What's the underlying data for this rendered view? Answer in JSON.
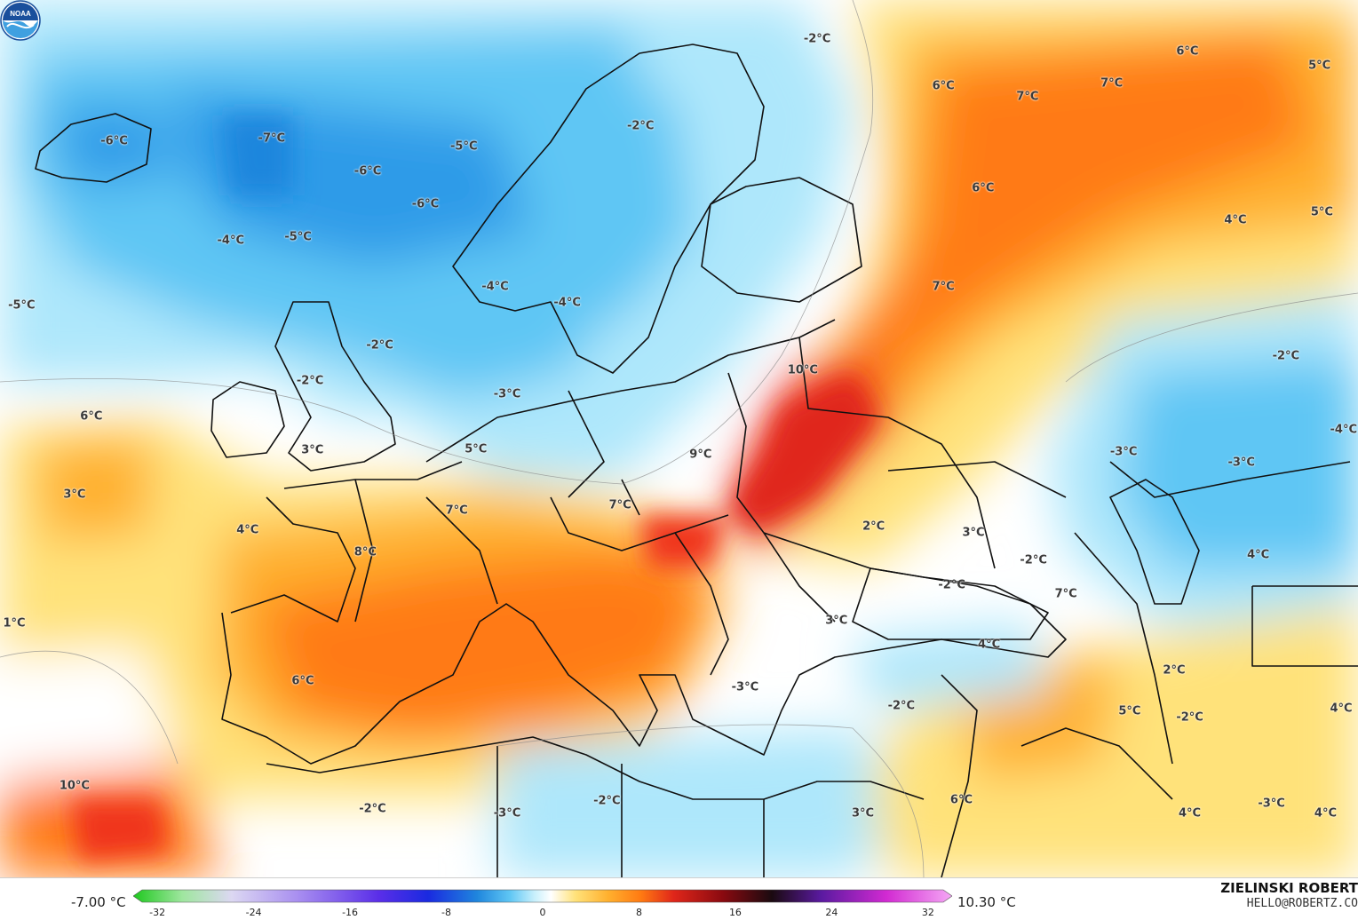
{
  "colors": {
    "cold_deep": "#2f9be8",
    "cold_mid": "#5fc6f4",
    "cold_light": "#aee7fb",
    "neutral": "#ffffff",
    "warm_light": "#ffe27a",
    "warm_mid": "#ffb02e",
    "warm_deep": "#ff7a12",
    "hot": "#f0361c",
    "border": "#111111"
  },
  "labels": [
    {
      "text": "-6°C",
      "lon": -18.5,
      "lat": 66.2
    },
    {
      "text": "-7°C",
      "lon": -5.4,
      "lat": 66.4
    },
    {
      "text": "-6°C",
      "lon": 2.6,
      "lat": 63.9
    },
    {
      "text": "-5°C",
      "lon": 10.6,
      "lat": 65.8
    },
    {
      "text": "-6°C",
      "lon": 7.4,
      "lat": 61.4
    },
    {
      "text": "-4°C",
      "lon": -8.8,
      "lat": 58.6
    },
    {
      "text": "-5°C",
      "lon": -3.2,
      "lat": 58.9
    },
    {
      "text": "-5°C",
      "lon": -26.2,
      "lat": 53.7
    },
    {
      "text": "-2°C",
      "lon": 25.3,
      "lat": 67.4
    },
    {
      "text": "-2°C",
      "lon": 40.0,
      "lat": 74.0
    },
    {
      "text": "-4°C",
      "lon": 13.2,
      "lat": 55.1
    },
    {
      "text": "-4°C",
      "lon": 19.2,
      "lat": 53.9
    },
    {
      "text": "-2°C",
      "lon": 3.6,
      "lat": 50.6
    },
    {
      "text": "-2°C",
      "lon": -2.2,
      "lat": 47.9
    },
    {
      "text": "-3°C",
      "lon": 14.2,
      "lat": 46.9
    },
    {
      "text": "6°C",
      "lon": 50.5,
      "lat": 70.4
    },
    {
      "text": "7°C",
      "lon": 57.5,
      "lat": 69.6
    },
    {
      "text": "7°C",
      "lon": 64.5,
      "lat": 70.6
    },
    {
      "text": "6°C",
      "lon": 70.8,
      "lat": 73.1
    },
    {
      "text": "5°C",
      "lon": 81.8,
      "lat": 72.0
    },
    {
      "text": "6°C",
      "lon": 53.8,
      "lat": 62.6
    },
    {
      "text": "4°C",
      "lon": 74.8,
      "lat": 60.2
    },
    {
      "text": "5°C",
      "lon": 82.0,
      "lat": 60.8
    },
    {
      "text": "7°C",
      "lon": 50.5,
      "lat": 55.1
    },
    {
      "text": "10°C",
      "lon": 38.8,
      "lat": 48.7
    },
    {
      "text": "-2°C",
      "lon": 79.0,
      "lat": 49.8
    },
    {
      "text": "-4°C",
      "lon": 83.8,
      "lat": 44.2
    },
    {
      "text": "-3°C",
      "lon": 65.5,
      "lat": 42.5
    },
    {
      "text": "-3°C",
      "lon": 75.3,
      "lat": 41.7
    },
    {
      "text": "6°C",
      "lon": -20.4,
      "lat": 45.2
    },
    {
      "text": "3°C",
      "lon": -2.0,
      "lat": 42.6
    },
    {
      "text": "5°C",
      "lon": 11.6,
      "lat": 42.7
    },
    {
      "text": "9°C",
      "lon": 30.3,
      "lat": 42.3
    },
    {
      "text": "3°C",
      "lon": -21.8,
      "lat": 39.2
    },
    {
      "text": "7°C",
      "lon": 10.0,
      "lat": 38.0
    },
    {
      "text": "7°C",
      "lon": 23.6,
      "lat": 38.4
    },
    {
      "text": "4°C",
      "lon": -7.4,
      "lat": 36.5
    },
    {
      "text": "8°C",
      "lon": 2.4,
      "lat": 34.8
    },
    {
      "text": "2°C",
      "lon": 44.7,
      "lat": 36.8
    },
    {
      "text": "3°C",
      "lon": 53.0,
      "lat": 36.3
    },
    {
      "text": "-2°C",
      "lon": 58.0,
      "lat": 34.2
    },
    {
      "text": "-2°C",
      "lon": 51.2,
      "lat": 32.3
    },
    {
      "text": "7°C",
      "lon": 60.7,
      "lat": 31.6
    },
    {
      "text": "4°C",
      "lon": 76.7,
      "lat": 34.6
    },
    {
      "text": "1°C",
      "lon": -27.2,
      "lat": 29.4
    },
    {
      "text": "3°C",
      "lon": 41.6,
      "lat": 29.6
    },
    {
      "text": "4°C",
      "lon": 54.3,
      "lat": 27.8
    },
    {
      "text": "2°C",
      "lon": 69.7,
      "lat": 25.8
    },
    {
      "text": "6°C",
      "lon": -2.8,
      "lat": 25.0
    },
    {
      "text": "-3°C",
      "lon": 34.0,
      "lat": 24.5
    },
    {
      "text": "-2°C",
      "lon": 47.0,
      "lat": 23.1
    },
    {
      "text": "5°C",
      "lon": 66.0,
      "lat": 22.7
    },
    {
      "text": "-2°C",
      "lon": 71.0,
      "lat": 22.2
    },
    {
      "text": "4°C",
      "lon": 83.6,
      "lat": 22.9
    },
    {
      "text": "10°C",
      "lon": -21.8,
      "lat": 17.0
    },
    {
      "text": "-2°C",
      "lon": 3.0,
      "lat": 15.2
    },
    {
      "text": "-3°C",
      "lon": 14.2,
      "lat": 14.9
    },
    {
      "text": "-2°C",
      "lon": 22.5,
      "lat": 15.8
    },
    {
      "text": "3°C",
      "lon": 43.8,
      "lat": 14.9
    },
    {
      "text": "6°C",
      "lon": 52.0,
      "lat": 15.9
    },
    {
      "text": "4°C",
      "lon": 71.0,
      "lat": 14.9
    },
    {
      "text": "-3°C",
      "lon": 77.8,
      "lat": 15.6
    },
    {
      "text": "4°C",
      "lon": 82.3,
      "lat": 14.9
    }
  ],
  "legend": {
    "min_value": "-7.00 °C",
    "max_value": "10.30 °C",
    "ticks": [
      "-32",
      "-24",
      "-16",
      "-8",
      "0",
      "8",
      "16",
      "24",
      "32"
    ],
    "scale_min": -34,
    "scale_max": 34
  },
  "branding": {
    "name": "ZIELINSKI ROBERT",
    "email": "HELLO@ROBERTZ.CO",
    "logo_text": "NOAA"
  }
}
